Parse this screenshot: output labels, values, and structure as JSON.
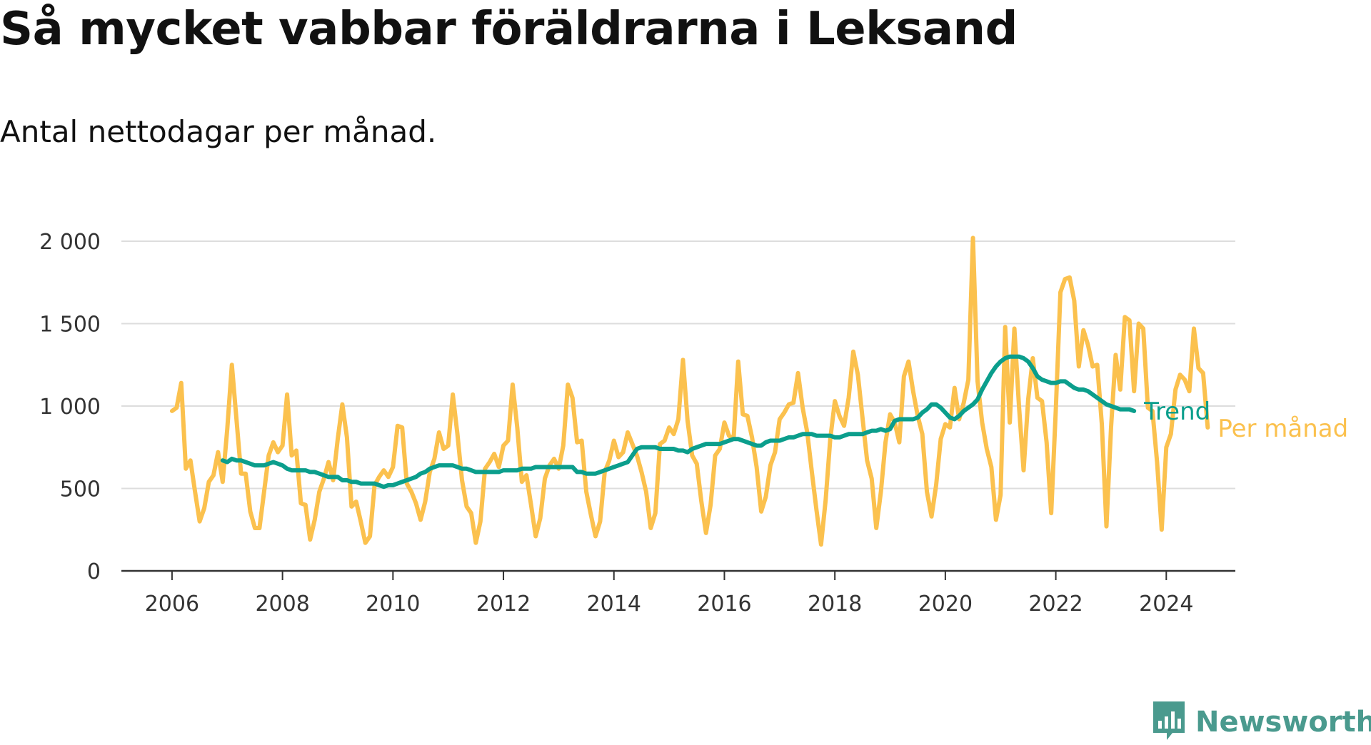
{
  "title": "Så mycket vabbar föräldrarna i Leksand",
  "subtitle": "Antal nettodagar per månad.",
  "brand": {
    "name": "Newsworthy",
    "icon": "bar-chart-speech-bubble-icon",
    "color": "#4a9a8e"
  },
  "colors": {
    "monthly": "#fbc14e",
    "trend": "#0b9e8c",
    "grid": "#dddddd",
    "axis": "#333333"
  },
  "chart_data": {
    "type": "line",
    "title": "Så mycket vabbar föräldrarna i Leksand",
    "subtitle": "Antal nettodagar per månad.",
    "xlabel": "",
    "ylabel": "",
    "xlim": [
      "2005-02",
      "2025-04"
    ],
    "ylim": [
      0,
      2000
    ],
    "y_ticks": [
      0,
      500,
      1000,
      1500,
      2000
    ],
    "y_tick_labels": [
      "0",
      "500",
      "1 000",
      "1 500",
      "2 000"
    ],
    "x_ticks": [
      "2006-01",
      "2008-01",
      "2010-01",
      "2012-01",
      "2014-01",
      "2016-01",
      "2018-01",
      "2020-01",
      "2022-01",
      "2024-01"
    ],
    "x_tick_labels": [
      "2006",
      "2008",
      "2010",
      "2012",
      "2014",
      "2016",
      "2018",
      "2020",
      "2022",
      "2024"
    ],
    "grid": true,
    "legend": "direct labels at line ends (right)",
    "series": [
      {
        "name": "Per månad",
        "color": "#fbc14e",
        "start": "2006-01",
        "values": [
          970,
          990,
          1140,
          620,
          670,
          480,
          300,
          380,
          540,
          580,
          720,
          540,
          860,
          1250,
          920,
          590,
          590,
          360,
          260,
          260,
          480,
          700,
          780,
          720,
          760,
          1070,
          700,
          730,
          410,
          400,
          190,
          310,
          480,
          560,
          660,
          550,
          800,
          1010,
          810,
          390,
          420,
          300,
          170,
          210,
          520,
          570,
          610,
          570,
          630,
          880,
          870,
          530,
          480,
          410,
          310,
          420,
          600,
          680,
          840,
          740,
          760,
          1070,
          830,
          550,
          390,
          350,
          170,
          300,
          620,
          660,
          710,
          630,
          760,
          790,
          1130,
          870,
          540,
          580,
          400,
          210,
          320,
          560,
          640,
          680,
          620,
          760,
          1130,
          1050,
          780,
          790,
          480,
          340,
          210,
          300,
          600,
          670,
          790,
          690,
          720,
          840,
          770,
          700,
          600,
          480,
          260,
          350,
          770,
          790,
          870,
          830,
          920,
          1280,
          910,
          700,
          650,
          420,
          230,
          400,
          700,
          740,
          900,
          820,
          800,
          1270,
          950,
          940,
          810,
          630,
          360,
          450,
          640,
          720,
          920,
          960,
          1010,
          1020,
          1200,
          990,
          840,
          600,
          370,
          160,
          430,
          800,
          1030,
          940,
          880,
          1050,
          1330,
          1190,
          930,
          670,
          560,
          260,
          480,
          780,
          950,
          900,
          780,
          1180,
          1270,
          1090,
          940,
          830,
          480,
          330,
          520,
          800,
          890,
          870,
          1110,
          920,
          1020,
          1160,
          2020,
          1150,
          900,
          740,
          630,
          310,
          460,
          1480,
          900,
          1470,
          1000,
          610,
          1040,
          1290,
          1050,
          1030,
          780,
          350,
          980,
          1690,
          1770,
          1780,
          1640,
          1240,
          1460,
          1370,
          1240,
          1250,
          890,
          270,
          870,
          1310,
          1100,
          1540,
          1520,
          1090,
          1500,
          1470,
          990,
          970,
          660,
          250,
          750,
          830,
          1100,
          1190,
          1160,
          1090,
          1470,
          1230,
          1200,
          870
        ]
      },
      {
        "name": "Trend",
        "color": "#0b9e8c",
        "start": "2006-12",
        "values": [
          670,
          660,
          680,
          670,
          670,
          660,
          650,
          640,
          640,
          640,
          650,
          660,
          650,
          640,
          620,
          610,
          610,
          610,
          610,
          600,
          600,
          590,
          580,
          570,
          570,
          570,
          550,
          550,
          540,
          540,
          530,
          530,
          530,
          530,
          520,
          510,
          520,
          520,
          530,
          540,
          550,
          560,
          570,
          590,
          600,
          620,
          630,
          640,
          640,
          640,
          640,
          630,
          620,
          620,
          610,
          600,
          600,
          600,
          600,
          600,
          600,
          610,
          610,
          610,
          610,
          620,
          620,
          620,
          630,
          630,
          630,
          630,
          630,
          630,
          630,
          630,
          630,
          600,
          600,
          590,
          590,
          590,
          600,
          610,
          620,
          630,
          640,
          650,
          660,
          700,
          740,
          750,
          750,
          750,
          750,
          740,
          740,
          740,
          740,
          730,
          730,
          720,
          740,
          750,
          760,
          770,
          770,
          770,
          770,
          780,
          790,
          800,
          800,
          790,
          780,
          770,
          760,
          760,
          780,
          790,
          790,
          790,
          800,
          810,
          810,
          820,
          830,
          830,
          830,
          820,
          820,
          820,
          820,
          810,
          810,
          820,
          830,
          830,
          830,
          830,
          840,
          850,
          850,
          860,
          850,
          860,
          910,
          920,
          920,
          920,
          920,
          930,
          960,
          980,
          1010,
          1010,
          990,
          960,
          930,
          920,
          940,
          970,
          990,
          1010,
          1040,
          1100,
          1150,
          1200,
          1240,
          1270,
          1290,
          1300,
          1300,
          1300,
          1290,
          1270,
          1230,
          1180,
          1160,
          1150,
          1140,
          1140,
          1150,
          1150,
          1130,
          1110,
          1100,
          1100,
          1090,
          1070,
          1050,
          1030,
          1010,
          1000,
          990,
          980,
          980,
          980,
          970
        ]
      }
    ]
  }
}
